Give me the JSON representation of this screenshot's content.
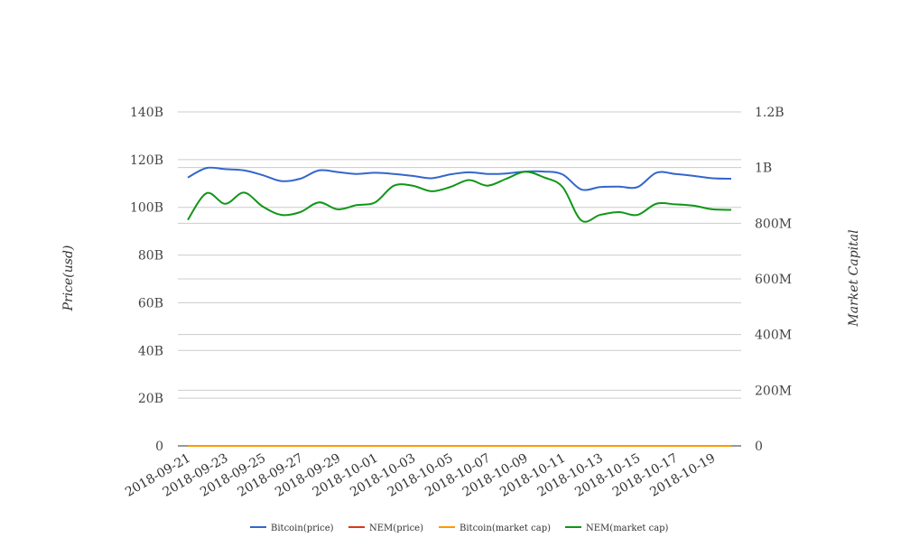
{
  "chart_data": {
    "type": "line",
    "x": [
      "2018-09-21",
      "2018-09-22",
      "2018-09-23",
      "2018-09-24",
      "2018-09-25",
      "2018-09-26",
      "2018-09-27",
      "2018-09-28",
      "2018-09-29",
      "2018-09-30",
      "2018-10-01",
      "2018-10-02",
      "2018-10-03",
      "2018-10-04",
      "2018-10-05",
      "2018-10-06",
      "2018-10-07",
      "2018-10-08",
      "2018-10-09",
      "2018-10-10",
      "2018-10-11",
      "2018-10-12",
      "2018-10-13",
      "2018-10-14",
      "2018-10-15",
      "2018-10-16",
      "2018-10-17",
      "2018-10-18",
      "2018-10-19",
      "2018-10-20"
    ],
    "xticks": [
      "2018-09-21",
      "2018-09-23",
      "2018-09-25",
      "2018-09-27",
      "2018-09-29",
      "2018-10-01",
      "2018-10-03",
      "2018-10-05",
      "2018-10-07",
      "2018-10-09",
      "2018-10-11",
      "2018-10-13",
      "2018-10-15",
      "2018-10-17",
      "2018-10-19"
    ],
    "y_left": {
      "label": "Price(usd)",
      "range": [
        0,
        140000000000
      ],
      "ticks": [
        0,
        20000000000,
        40000000000,
        60000000000,
        80000000000,
        100000000000,
        120000000000,
        140000000000
      ],
      "tick_labels": [
        "0",
        "20B",
        "40B",
        "60B",
        "80B",
        "100B",
        "120B",
        "140B"
      ]
    },
    "y_right": {
      "label": "Market Capital",
      "range": [
        0,
        1200000000
      ],
      "ticks": [
        0,
        200000000,
        400000000,
        600000000,
        800000000,
        1000000000,
        1200000000
      ],
      "tick_labels": [
        "0",
        "200M",
        "400M",
        "600M",
        "800M",
        "1B",
        "1.2B"
      ]
    },
    "grid": true,
    "legend_position": "bottom",
    "series": [
      {
        "name": "Bitcoin(price)",
        "axis": "left",
        "color": "#3366cc",
        "values": [
          112500000000,
          116500000000,
          116000000000,
          115500000000,
          113500000000,
          111000000000,
          112000000000,
          115500000000,
          114800000000,
          114000000000,
          114500000000,
          114000000000,
          113200000000,
          112200000000,
          113800000000,
          114700000000,
          114000000000,
          114200000000,
          115000000000,
          115000000000,
          113800000000,
          107500000000,
          108500000000,
          108700000000,
          108500000000,
          114500000000,
          114000000000,
          113200000000,
          112200000000,
          112000000000
        ]
      },
      {
        "name": "NEM(price)",
        "axis": "left",
        "color": "#dc3912",
        "values": [
          0,
          0,
          0,
          0,
          0,
          0,
          0,
          0,
          0,
          0,
          0,
          0,
          0,
          0,
          0,
          0,
          0,
          0,
          0,
          0,
          0,
          0,
          0,
          0,
          0,
          0,
          0,
          0,
          0,
          0
        ]
      },
      {
        "name": "Bitcoin(market cap)",
        "axis": "left",
        "color": "#ff9900",
        "values": [
          0,
          0,
          0,
          0,
          0,
          0,
          0,
          0,
          0,
          0,
          0,
          0,
          0,
          0,
          0,
          0,
          0,
          0,
          0,
          0,
          0,
          0,
          0,
          0,
          0,
          0,
          0,
          0,
          0,
          0
        ]
      },
      {
        "name": "NEM(market cap)",
        "axis": "right",
        "color": "#109618",
        "values": [
          812000000,
          908000000,
          870000000,
          910000000,
          860000000,
          830000000,
          840000000,
          875000000,
          850000000,
          865000000,
          875000000,
          935000000,
          935000000,
          915000000,
          930000000,
          955000000,
          935000000,
          960000000,
          985000000,
          965000000,
          930000000,
          810000000,
          830000000,
          840000000,
          830000000,
          870000000,
          868000000,
          863000000,
          850000000,
          848000000
        ]
      }
    ]
  }
}
